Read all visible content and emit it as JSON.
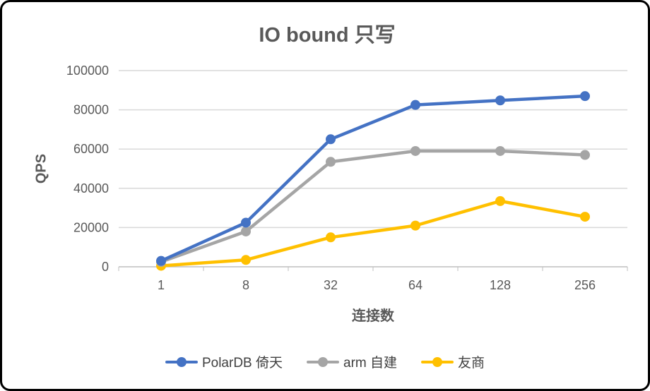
{
  "frame": {
    "background": "#ffffff",
    "border_color": "#000000"
  },
  "chart_data": {
    "type": "line",
    "title": "IO bound 只写",
    "xlabel": "连接数",
    "ylabel": "QPS",
    "categories": [
      "1",
      "8",
      "32",
      "64",
      "128",
      "256"
    ],
    "yticks": [
      0,
      20000,
      40000,
      60000,
      80000,
      100000
    ],
    "ylim": [
      0,
      100000
    ],
    "grid": "horizontal",
    "legend_position": "bottom",
    "marker": "circle",
    "series": [
      {
        "name": "PolarDB 倚天",
        "color": "#4472C4",
        "values": [
          3000,
          22500,
          65000,
          82500,
          84800,
          87000
        ]
      },
      {
        "name": "arm 自建",
        "color": "#A5A5A5",
        "values": [
          2500,
          18000,
          53500,
          59000,
          59000,
          57000
        ]
      },
      {
        "name": "友商",
        "color": "#FFC000",
        "values": [
          500,
          3500,
          15000,
          21000,
          33500,
          25500
        ]
      }
    ],
    "axis_color": "#BFBFBF",
    "gridline_color": "#D9D9D9"
  }
}
